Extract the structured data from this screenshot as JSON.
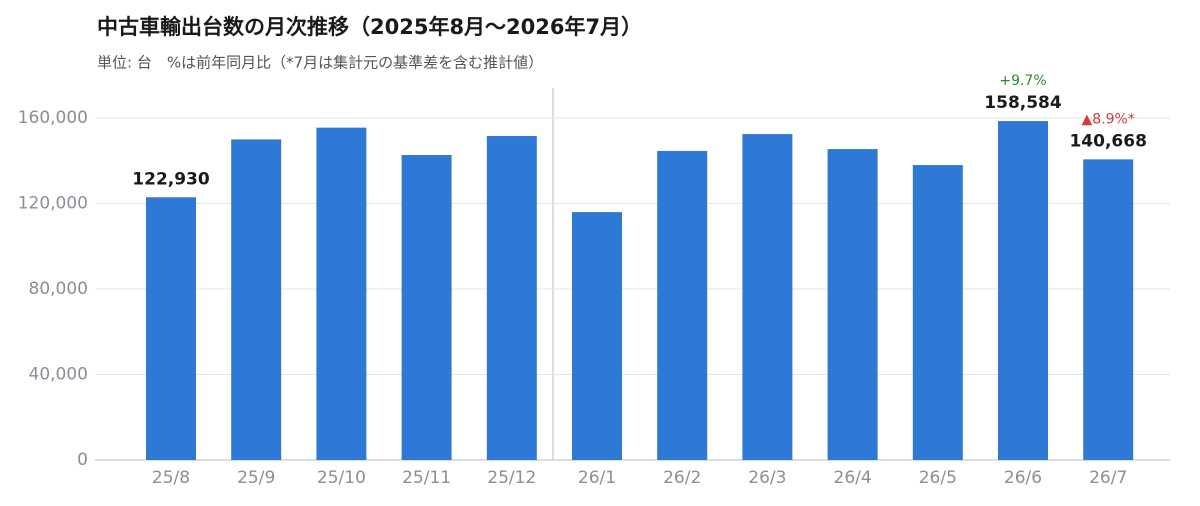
{
  "chart_data": {
    "type": "bar",
    "title": "中古車輸出台数の月次推移（2025年8月～2026年7月）",
    "subtitle": "単位: 台　%は前年同月比（*7月は集計元の基準差を含む推計値）",
    "categories": [
      "25/8",
      "25/9",
      "25/10",
      "25/11",
      "25/12",
      "26/1",
      "26/2",
      "26/3",
      "26/4",
      "26/5",
      "26/6",
      "26/7"
    ],
    "values": [
      122930,
      150000,
      155500,
      142700,
      151600,
      116000,
      144600,
      152500,
      145500,
      138000,
      158584,
      140668
    ],
    "value_labels": [
      "122,930",
      null,
      null,
      null,
      null,
      null,
      null,
      null,
      null,
      null,
      "158,584",
      "140,668"
    ],
    "color": "#2e78d6",
    "annotations": [
      {
        "category": "26/6",
        "text": "+9.7%",
        "color": "#2e8b2e"
      },
      {
        "category": "26/7",
        "text": "▲8.9%*",
        "color": "#d43a3a"
      }
    ],
    "ylim": [
      0,
      175000
    ],
    "yticks": [
      0,
      {
        "value": 40000,
        "label": "40,000"
      },
      {
        "value": 80000,
        "label": "80,000"
      },
      {
        "value": 120000,
        "label": "120,000"
      },
      {
        "value": 160000,
        "label": "160,000"
      }
    ],
    "grid": true
  }
}
